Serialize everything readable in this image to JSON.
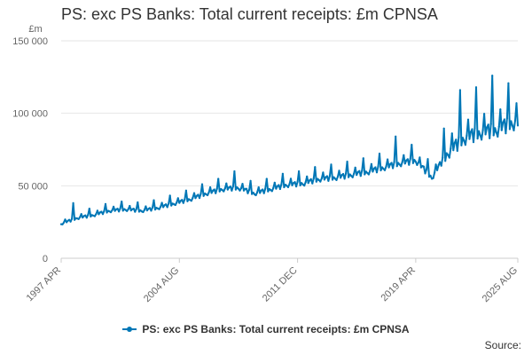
{
  "chart_data": {
    "type": "line",
    "title": "PS: exc PS Banks: Total current receipts: £m CPNSA",
    "unit_label": "£m",
    "ylim": [
      0,
      150000
    ],
    "y_ticks": [
      0,
      50000,
      100000,
      150000
    ],
    "y_tick_labels": [
      "0",
      "50 000",
      "100 000",
      "150 000"
    ],
    "x_ticks": [
      "1997 APR",
      "2004 AUG",
      "2011 DEC",
      "2019 APR",
      "2025 AUG"
    ],
    "x_range": [
      "1997-04",
      "2025-08"
    ],
    "grid": true,
    "legend_position": "bottom",
    "line_color": "#0077b6",
    "grid_color": "#e6e6e6",
    "series": [
      {
        "name": "PS: exc PS Banks: Total current receipts: £m CPNSA",
        "x": [
          "1997-04",
          "1998-04",
          "1999-04",
          "2000-04",
          "2001-04",
          "2002-04",
          "2003-04",
          "2004-04",
          "2005-04",
          "2006-04",
          "2007-04",
          "2008-04",
          "2009-04",
          "2010-04",
          "2011-04",
          "2012-04",
          "2013-04",
          "2014-04",
          "2015-04",
          "2016-04",
          "2017-04",
          "2018-04",
          "2019-04",
          "2020-04",
          "2021-04",
          "2022-04",
          "2023-04",
          "2024-04",
          "2025-04"
        ],
        "values": [
          24000,
          28000,
          30000,
          33000,
          34000,
          33000,
          35000,
          38000,
          41000,
          45000,
          48000,
          49000,
          45000,
          48000,
          51000,
          52000,
          55000,
          56000,
          58000,
          60000,
          63000,
          66000,
          68000,
          56000,
          74000,
          84000,
          88000,
          90000,
          95000
        ]
      }
    ],
    "peaks": [
      {
        "x": "1998-01",
        "value": 38000
      },
      {
        "x": "2008-01",
        "value": 60000
      },
      {
        "x": "2018-01",
        "value": 84000
      },
      {
        "x": "2022-01",
        "value": 116000
      },
      {
        "x": "2023-01",
        "value": 118000
      },
      {
        "x": "2024-01",
        "value": 126000
      }
    ]
  },
  "legend": {
    "label": "PS: exc PS Banks: Total current receipts: £m CPNSA"
  },
  "source": {
    "label": "Source:"
  }
}
